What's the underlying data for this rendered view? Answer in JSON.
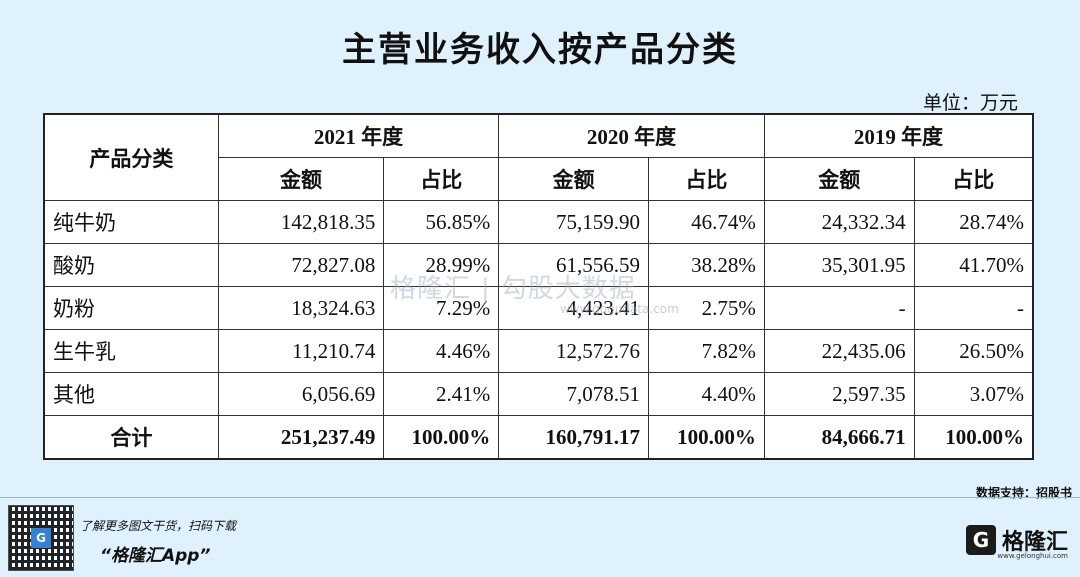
{
  "title": "主营业务收入按产品分类",
  "unit": "单位：万元",
  "table": {
    "corner": "产品分类",
    "years": [
      "2021 年度",
      "2020 年度",
      "2019 年度"
    ],
    "sub": [
      "金额",
      "占比",
      "金额",
      "占比",
      "金额",
      "占比"
    ],
    "rows": [
      {
        "name": "纯牛奶",
        "cells": [
          "142,818.35",
          "56.85%",
          "75,159.90",
          "46.74%",
          "24,332.34",
          "28.74%"
        ]
      },
      {
        "name": "酸奶",
        "cells": [
          "72,827.08",
          "28.99%",
          "61,556.59",
          "38.28%",
          "35,301.95",
          "41.70%"
        ]
      },
      {
        "name": "奶粉",
        "cells": [
          "18,324.63",
          "7.29%",
          "4,423.41",
          "2.75%",
          "-",
          "-"
        ]
      },
      {
        "name": "生牛乳",
        "cells": [
          "11,210.74",
          "4.46%",
          "12,572.76",
          "7.82%",
          "22,435.06",
          "26.50%"
        ]
      },
      {
        "name": "其他",
        "cells": [
          "6,056.69",
          "2.41%",
          "7,078.51",
          "4.40%",
          "2,597.35",
          "3.07%"
        ]
      }
    ],
    "total": {
      "name": "合计",
      "cells": [
        "251,237.49",
        "100.00%",
        "160,791.17",
        "100.00%",
        "84,666.71",
        "100.00%"
      ]
    }
  },
  "watermark": {
    "brand": "格隆汇",
    "sep": "|",
    "data": "勾股大数据",
    "url": "www.gogudata.com"
  },
  "source": "数据支持：招股书",
  "footer": {
    "promo_line1": "了解更多图文干货，扫码下载",
    "promo_line2": "“格隆汇App”",
    "qr_logo": "G",
    "brand_logo": "G",
    "brand_name": "格隆汇",
    "brand_url": "www.gelonghui.com"
  },
  "colors": {
    "background": "#dff1fc",
    "table_bg": "#ffffff",
    "border": "#333333"
  }
}
